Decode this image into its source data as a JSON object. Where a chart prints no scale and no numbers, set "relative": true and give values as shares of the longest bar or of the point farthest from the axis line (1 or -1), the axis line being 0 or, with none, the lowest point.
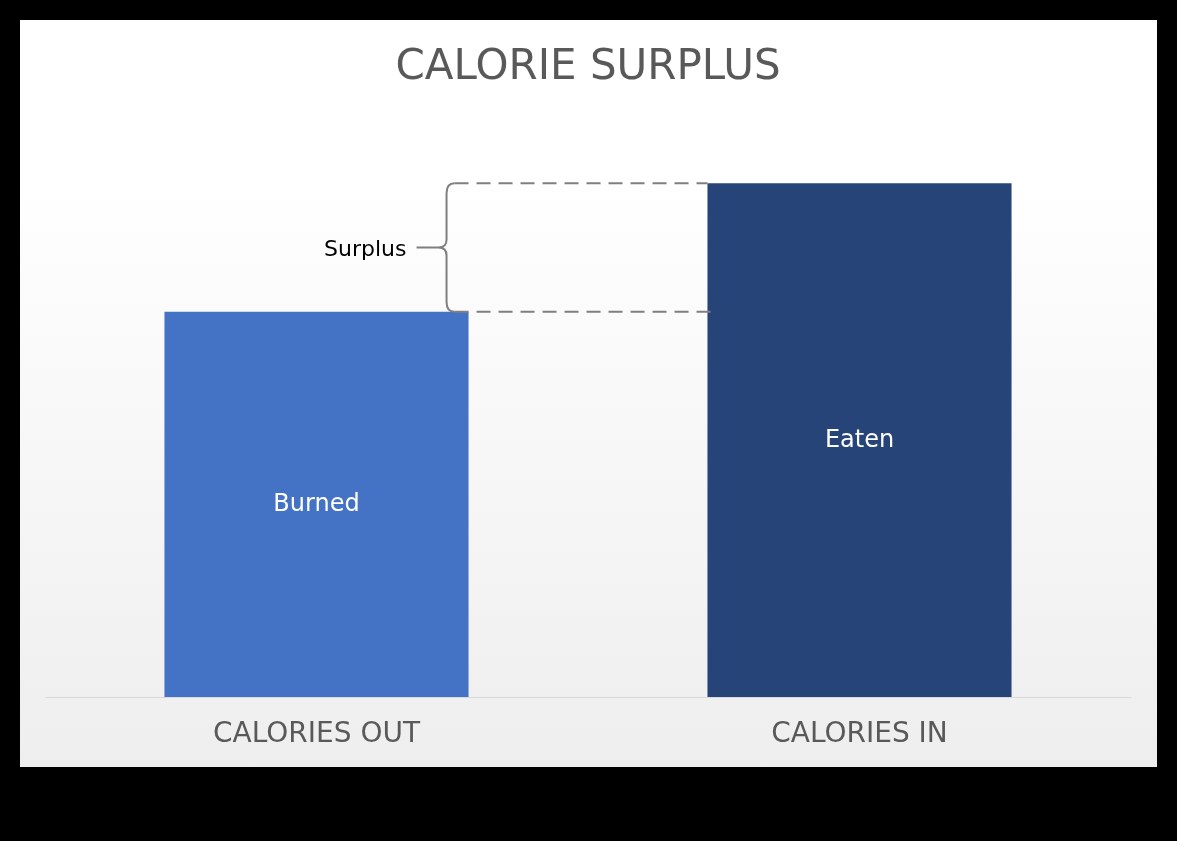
{
  "chart_data": {
    "type": "bar",
    "title": "CALORIE SURPLUS",
    "relative": true,
    "grid": false,
    "legend": false,
    "categories": [
      "CALORIES OUT",
      "CALORIES IN"
    ],
    "values": [
      0.75,
      1
    ],
    "colors": [
      "#4472c4",
      "#264478"
    ],
    "annotations": [
      "Burned",
      "Eaten",
      "Surplus"
    ]
  }
}
